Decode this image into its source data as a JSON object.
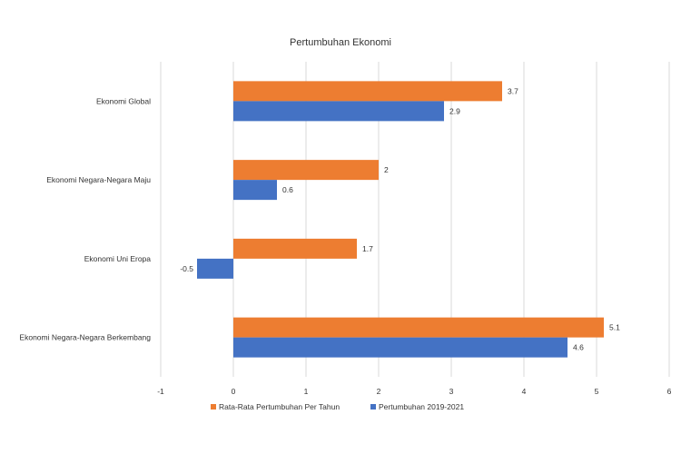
{
  "chart_data": {
    "type": "bar",
    "orientation": "horizontal",
    "title": "Pertumbuhan Ekonomi",
    "categories": [
      "Ekonomi Global",
      "Ekonomi Negara-Negara Maju",
      "Ekonomi Uni Eropa",
      "Ekonomi Negara-Negara Berkembang"
    ],
    "series": [
      {
        "name": "Rata-Rata Pertumbuhan Per Tahun",
        "color": "#ED7D31",
        "values": [
          3.7,
          2,
          1.7,
          5.1
        ]
      },
      {
        "name": "Pertumbuhan 2019-2021",
        "color": "#4472C4",
        "values": [
          2.9,
          0.6,
          -0.5,
          4.6
        ]
      }
    ],
    "data_labels": [
      [
        "3.7",
        "2",
        "1.7",
        "5.1"
      ],
      [
        "2.9",
        "0.6",
        "-0.5",
        "4.6"
      ]
    ],
    "xlim": [
      -1,
      6
    ],
    "xticks": [
      "-1",
      "0",
      "1",
      "2",
      "3",
      "4",
      "5",
      "6"
    ],
    "grid": true,
    "legend_position": "bottom"
  }
}
